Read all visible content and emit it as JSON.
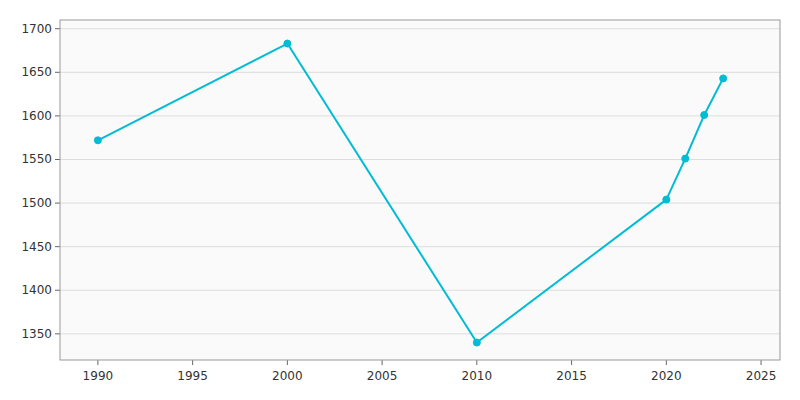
{
  "chart_data": {
    "type": "line",
    "x": [
      1990,
      2000,
      2010,
      2020,
      2021,
      2022,
      2023
    ],
    "values": [
      1572,
      1683,
      1340,
      1504,
      1551,
      1601,
      1643
    ],
    "color": "#00BCD4",
    "marker": "circle",
    "xlim": [
      1988,
      2026
    ],
    "ylim": [
      1320,
      1710
    ],
    "xticks": [
      1990,
      1995,
      2000,
      2005,
      2010,
      2015,
      2020,
      2025
    ],
    "yticks": [
      1350,
      1400,
      1450,
      1500,
      1550,
      1600,
      1650,
      1700
    ],
    "grid": true
  }
}
